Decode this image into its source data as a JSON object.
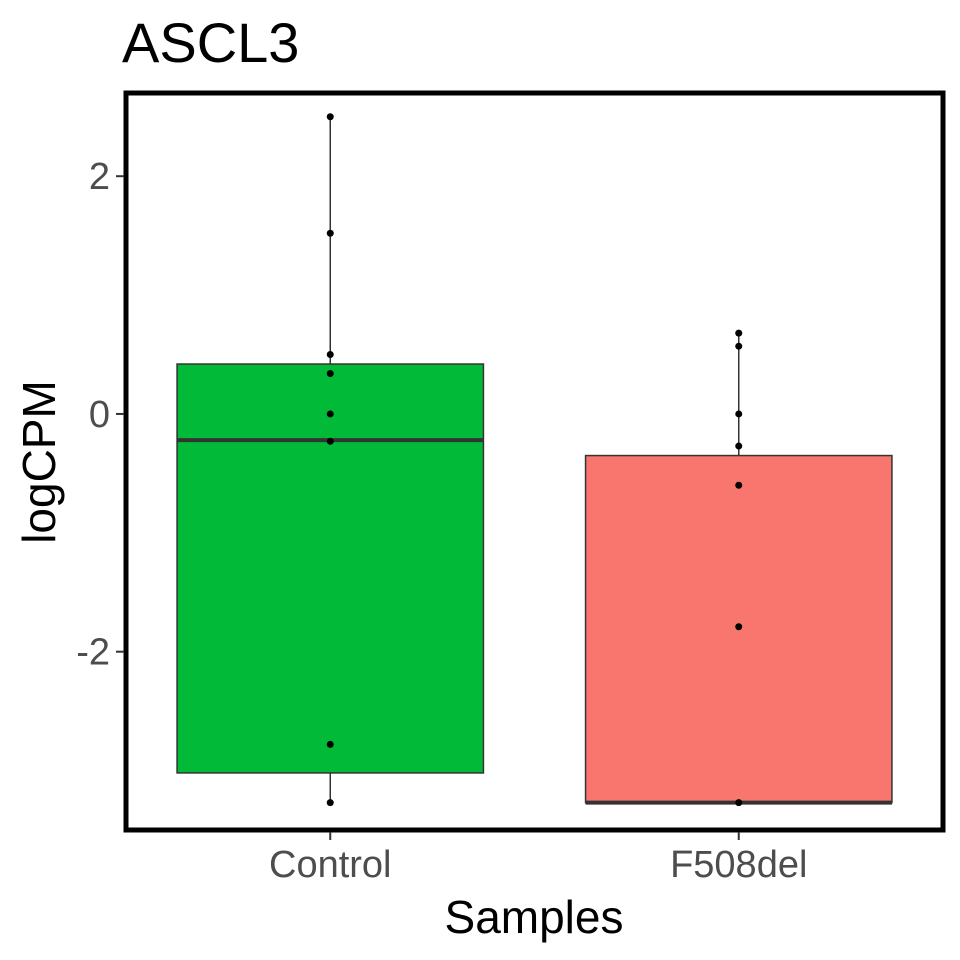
{
  "chart_data": {
    "type": "box",
    "title": "ASCL3",
    "xlabel": "Samples",
    "ylabel": "logCPM",
    "ylim": [
      -3.5,
      2.7
    ],
    "yticks": [
      -2,
      0,
      2
    ],
    "categories": [
      "Control",
      "F508del"
    ],
    "boxes": [
      {
        "name": "Control",
        "color": "#00BA38",
        "q1": -3.02,
        "median": -0.22,
        "q3": 0.42,
        "whisker_low": -3.27,
        "whisker_high": 2.5,
        "points": [
          2.5,
          1.52,
          0.5,
          0.34,
          0.0,
          -0.23,
          -2.78,
          -3.27
        ]
      },
      {
        "name": "F508del",
        "color": "#F8766D",
        "q1": -3.27,
        "median": -3.27,
        "q3": -0.35,
        "whisker_low": -3.27,
        "whisker_high": 0.68,
        "points": [
          0.68,
          0.57,
          0.0,
          -0.27,
          -0.6,
          -1.79,
          -3.27
        ]
      }
    ],
    "grid": false,
    "legend": "none"
  }
}
